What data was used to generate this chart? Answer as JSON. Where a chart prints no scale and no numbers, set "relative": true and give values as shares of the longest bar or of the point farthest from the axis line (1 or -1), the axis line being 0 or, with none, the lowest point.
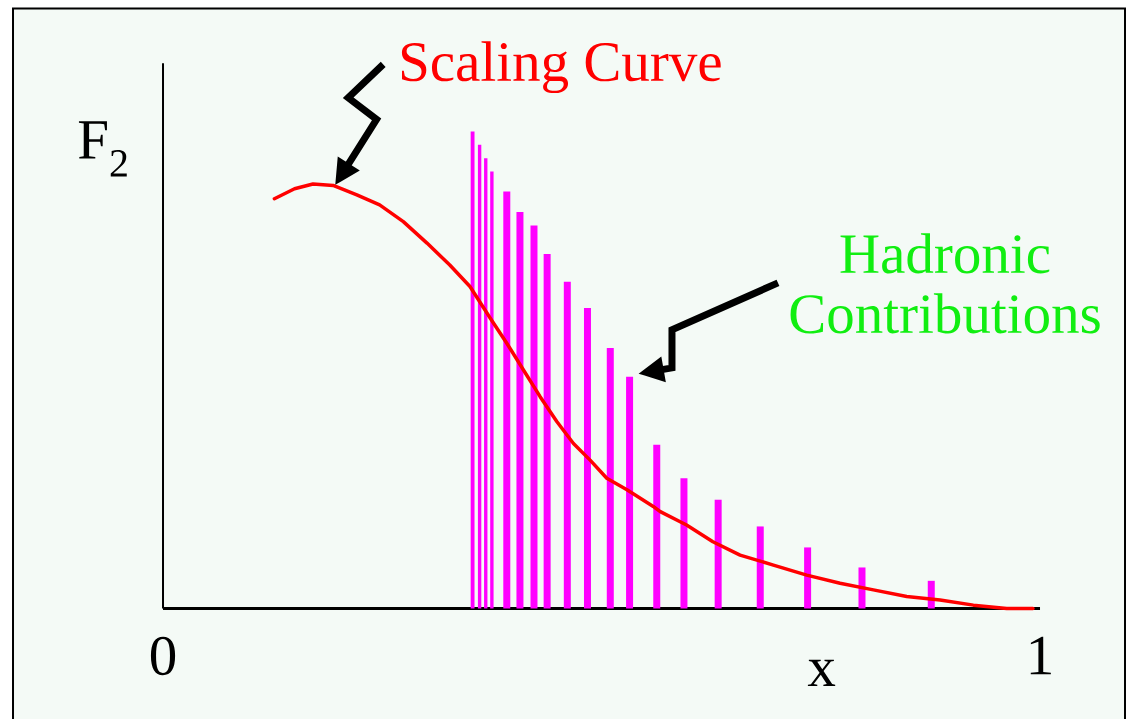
{
  "chart_data": {
    "type": "line",
    "xlabel": "x",
    "ylabel": "F$_{2}$",
    "xlim": [
      0,
      1
    ],
    "xticks": [
      0,
      1
    ],
    "relative": true,
    "series": [
      {
        "color": "#ff0000",
        "x": [
          0.127,
          0.15,
          0.171,
          0.194,
          0.221,
          0.247,
          0.274,
          0.301,
          0.327,
          0.35,
          0.373,
          0.392,
          0.411,
          0.43,
          0.449,
          0.468,
          0.487,
          0.506,
          0.529,
          0.559,
          0.567,
          0.597,
          0.627,
          0.658,
          0.696,
          0.734,
          0.772,
          0.81,
          0.848,
          0.886,
          0.924,
          0.962,
          0.992
        ],
        "values": [
          0.859,
          0.88,
          0.89,
          0.887,
          0.867,
          0.846,
          0.811,
          0.766,
          0.72,
          0.675,
          0.609,
          0.556,
          0.5,
          0.444,
          0.392,
          0.346,
          0.311,
          0.273,
          0.249,
          0.214,
          0.203,
          0.175,
          0.14,
          0.112,
          0.091,
          0.07,
          0.053,
          0.039,
          0.025,
          0.018,
          0.007,
          0.0,
          0.0
        ]
      },
      {
        "type": "bar",
        "color": "#ff00ff",
        "x": [
          0.353,
          0.361,
          0.368,
          0.375,
          0.392,
          0.407,
          0.423,
          0.438,
          0.461,
          0.484,
          0.51,
          0.532,
          0.563,
          0.594,
          0.633,
          0.681,
          0.735,
          0.797,
          0.876
        ],
        "values": [
          1.0,
          0.972,
          0.944,
          0.916,
          0.874,
          0.831,
          0.803,
          0.743,
          0.685,
          0.63,
          0.546,
          0.486,
          0.343,
          0.273,
          0.228,
          0.172,
          0.128,
          0.086,
          0.058
        ]
      }
    ],
    "annotations": [
      {
        "text": "Scaling Curve",
        "x": 0.196,
        "y": 0.887
      },
      {
        "text": "Hadronic Contributions",
        "x": 0.532,
        "y": 0.486
      }
    ]
  }
}
